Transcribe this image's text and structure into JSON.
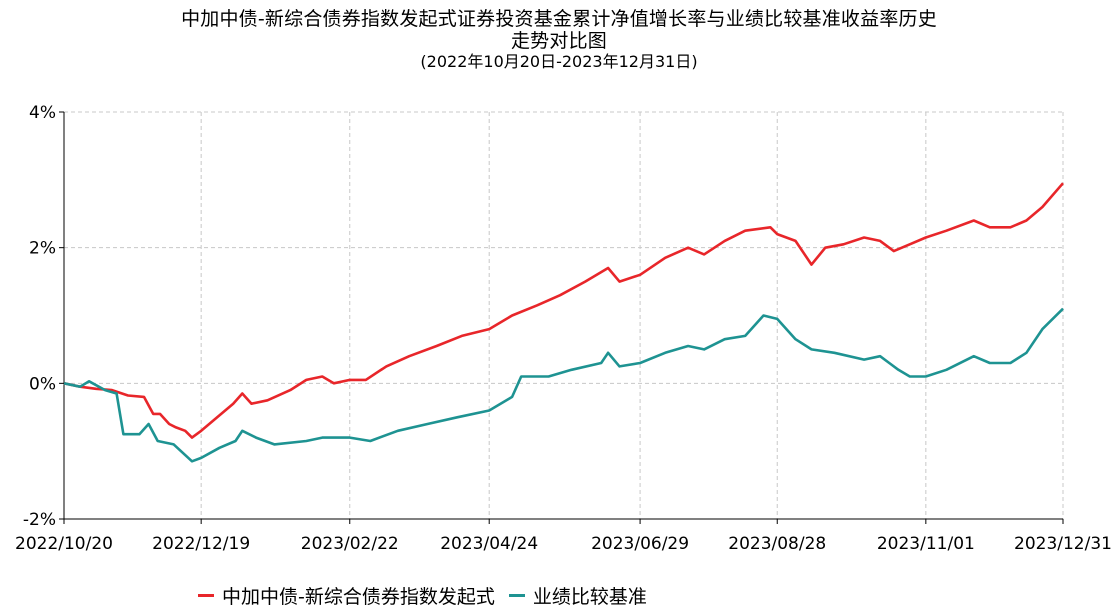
{
  "title_line1": "中加中债-新综合债券指数发起式证券投资基金累计净值增长率与业绩比较基准收益率历史",
  "title_line2": "走势对比图",
  "subtitle": "(2022年10月20日-2023年12月31日)",
  "chart_data": {
    "type": "line",
    "title": "中加中债-新综合债券指数发起式证券投资基金累计净值增长率与业绩比较基准收益率历史走势对比图",
    "subtitle": "(2022年10月20日-2023年12月31日)",
    "xlabel": "",
    "ylabel": "",
    "x_range": [
      "2022-10-20",
      "2023-12-31"
    ],
    "x_ticks": [
      "2022/10/20",
      "2022/12/19",
      "2023/02/22",
      "2023/04/24",
      "2023/06/29",
      "2023/08/28",
      "2023/11/01",
      "2023/12/31"
    ],
    "y_range": [
      -2,
      4
    ],
    "y_ticks": [
      -2,
      0,
      2,
      4
    ],
    "y_tick_labels": [
      "-2%",
      "0%",
      "2%",
      "4%"
    ],
    "grid": true,
    "legend_position": "bottom",
    "series": [
      {
        "name": "中加中债-新综合债券指数发起式",
        "color": "#e8262a",
        "points": [
          [
            "2022-10-20",
            0.0
          ],
          [
            "2022-10-27",
            -0.05
          ],
          [
            "2022-11-03",
            -0.08
          ],
          [
            "2022-11-10",
            -0.1
          ],
          [
            "2022-11-17",
            -0.18
          ],
          [
            "2022-11-24",
            -0.2
          ],
          [
            "2022-11-28",
            -0.45
          ],
          [
            "2022-12-01",
            -0.45
          ],
          [
            "2022-12-05",
            -0.6
          ],
          [
            "2022-12-08",
            -0.65
          ],
          [
            "2022-12-12",
            -0.7
          ],
          [
            "2022-12-15",
            -0.8
          ],
          [
            "2022-12-19",
            -0.7
          ],
          [
            "2022-12-26",
            -0.5
          ],
          [
            "2023-01-02",
            -0.3
          ],
          [
            "2023-01-06",
            -0.15
          ],
          [
            "2023-01-10",
            -0.3
          ],
          [
            "2023-01-17",
            -0.25
          ],
          [
            "2023-01-27",
            -0.1
          ],
          [
            "2023-02-03",
            0.05
          ],
          [
            "2023-02-10",
            0.1
          ],
          [
            "2023-02-15",
            0.0
          ],
          [
            "2023-02-22",
            0.05
          ],
          [
            "2023-03-01",
            0.05
          ],
          [
            "2023-03-10",
            0.25
          ],
          [
            "2023-03-20",
            0.4
          ],
          [
            "2023-04-01",
            0.55
          ],
          [
            "2023-04-12",
            0.7
          ],
          [
            "2023-04-24",
            0.8
          ],
          [
            "2023-05-04",
            1.0
          ],
          [
            "2023-05-15",
            1.15
          ],
          [
            "2023-05-25",
            1.3
          ],
          [
            "2023-06-05",
            1.5
          ],
          [
            "2023-06-15",
            1.7
          ],
          [
            "2023-06-20",
            1.5
          ],
          [
            "2023-06-29",
            1.6
          ],
          [
            "2023-07-10",
            1.85
          ],
          [
            "2023-07-20",
            2.0
          ],
          [
            "2023-07-27",
            1.9
          ],
          [
            "2023-08-05",
            2.1
          ],
          [
            "2023-08-14",
            2.25
          ],
          [
            "2023-08-25",
            2.3
          ],
          [
            "2023-08-28",
            2.2
          ],
          [
            "2023-09-05",
            2.1
          ],
          [
            "2023-09-12",
            1.75
          ],
          [
            "2023-09-18",
            2.0
          ],
          [
            "2023-09-26",
            2.05
          ],
          [
            "2023-10-05",
            2.15
          ],
          [
            "2023-10-12",
            2.1
          ],
          [
            "2023-10-18",
            1.95
          ],
          [
            "2023-10-25",
            2.05
          ],
          [
            "2023-11-01",
            2.15
          ],
          [
            "2023-11-10",
            2.25
          ],
          [
            "2023-11-22",
            2.4
          ],
          [
            "2023-11-29",
            2.3
          ],
          [
            "2023-12-08",
            2.3
          ],
          [
            "2023-12-15",
            2.4
          ],
          [
            "2023-12-22",
            2.6
          ],
          [
            "2023-12-31",
            2.95
          ]
        ]
      },
      {
        "name": "业绩比较基准",
        "color": "#1e9392",
        "points": [
          [
            "2022-10-20",
            0.0
          ],
          [
            "2022-10-27",
            -0.05
          ],
          [
            "2022-10-31",
            0.03
          ],
          [
            "2022-11-07",
            -0.1
          ],
          [
            "2022-11-12",
            -0.15
          ],
          [
            "2022-11-15",
            -0.75
          ],
          [
            "2022-11-22",
            -0.75
          ],
          [
            "2022-11-26",
            -0.6
          ],
          [
            "2022-11-30",
            -0.85
          ],
          [
            "2022-12-07",
            -0.9
          ],
          [
            "2022-12-15",
            -1.15
          ],
          [
            "2022-12-19",
            -1.1
          ],
          [
            "2022-12-27",
            -0.95
          ],
          [
            "2023-01-03",
            -0.85
          ],
          [
            "2023-01-06",
            -0.7
          ],
          [
            "2023-01-12",
            -0.8
          ],
          [
            "2023-01-20",
            -0.9
          ],
          [
            "2023-02-03",
            -0.85
          ],
          [
            "2023-02-10",
            -0.8
          ],
          [
            "2023-02-22",
            -0.8
          ],
          [
            "2023-03-03",
            -0.85
          ],
          [
            "2023-03-15",
            -0.7
          ],
          [
            "2023-03-28",
            -0.6
          ],
          [
            "2023-04-10",
            -0.5
          ],
          [
            "2023-04-24",
            -0.4
          ],
          [
            "2023-05-04",
            -0.2
          ],
          [
            "2023-05-08",
            0.1
          ],
          [
            "2023-05-20",
            0.1
          ],
          [
            "2023-05-30",
            0.2
          ],
          [
            "2023-06-12",
            0.3
          ],
          [
            "2023-06-15",
            0.45
          ],
          [
            "2023-06-20",
            0.25
          ],
          [
            "2023-06-29",
            0.3
          ],
          [
            "2023-07-10",
            0.45
          ],
          [
            "2023-07-20",
            0.55
          ],
          [
            "2023-07-27",
            0.5
          ],
          [
            "2023-08-05",
            0.65
          ],
          [
            "2023-08-14",
            0.7
          ],
          [
            "2023-08-22",
            1.0
          ],
          [
            "2023-08-28",
            0.95
          ],
          [
            "2023-09-05",
            0.65
          ],
          [
            "2023-09-12",
            0.5
          ],
          [
            "2023-09-22",
            0.45
          ],
          [
            "2023-10-05",
            0.35
          ],
          [
            "2023-10-12",
            0.4
          ],
          [
            "2023-10-20",
            0.2
          ],
          [
            "2023-10-25",
            0.1
          ],
          [
            "2023-11-01",
            0.1
          ],
          [
            "2023-11-10",
            0.2
          ],
          [
            "2023-11-22",
            0.4
          ],
          [
            "2023-11-29",
            0.3
          ],
          [
            "2023-12-08",
            0.3
          ],
          [
            "2023-12-15",
            0.45
          ],
          [
            "2023-12-22",
            0.8
          ],
          [
            "2023-12-31",
            1.1
          ]
        ]
      }
    ]
  }
}
